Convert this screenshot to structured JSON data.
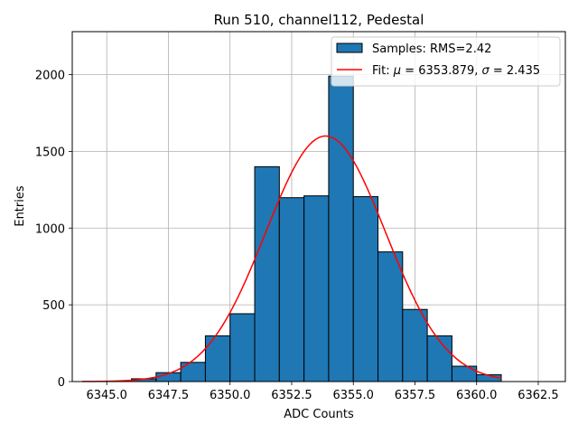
{
  "chart_data": {
    "type": "bar",
    "title": "Run 510, channel112, Pedestal",
    "xlabel": "ADC Counts",
    "ylabel": "Entries",
    "xlim": [
      6343.6,
      6363.6
    ],
    "ylim": [
      0,
      2280
    ],
    "grid": true,
    "legend_position": "top-right",
    "x_ticks": [
      6345.0,
      6347.5,
      6350.0,
      6352.5,
      6355.0,
      6357.5,
      6360.0,
      6362.5
    ],
    "x_tick_labels": [
      "6345.0",
      "6347.5",
      "6350.0",
      "6352.5",
      "6355.0",
      "6357.5",
      "6360.0",
      "6362.5"
    ],
    "y_ticks": [
      0,
      500,
      1000,
      1500,
      2000
    ],
    "y_tick_labels": [
      "0",
      "500",
      "1000",
      "1500",
      "2000"
    ],
    "histogram": {
      "name": "Samples: RMS=2.42",
      "color": "#1f77b4",
      "edge_color": "#000000",
      "bin_edges": [
        6346,
        6347,
        6348,
        6349,
        6350,
        6351,
        6352,
        6353,
        6354,
        6355,
        6356,
        6357,
        6358,
        6359,
        6360,
        6361
      ],
      "counts": [
        18,
        58,
        125,
        298,
        442,
        1400,
        1198,
        1210,
        1990,
        1205,
        845,
        470,
        298,
        100,
        45
      ]
    },
    "fit": {
      "name": "Fit: μ = 6353.879, σ = 2.435",
      "name_prefix": "Fit: ",
      "mu_symbol": "μ",
      "mu_text": " = 6353.879, ",
      "sigma_symbol": "σ",
      "sigma_text": " = 2.435",
      "color": "#ff0000",
      "mu": 6353.879,
      "sigma": 2.435,
      "amplitude": 1600,
      "x_range": [
        6344.0,
        6361.0
      ]
    }
  }
}
